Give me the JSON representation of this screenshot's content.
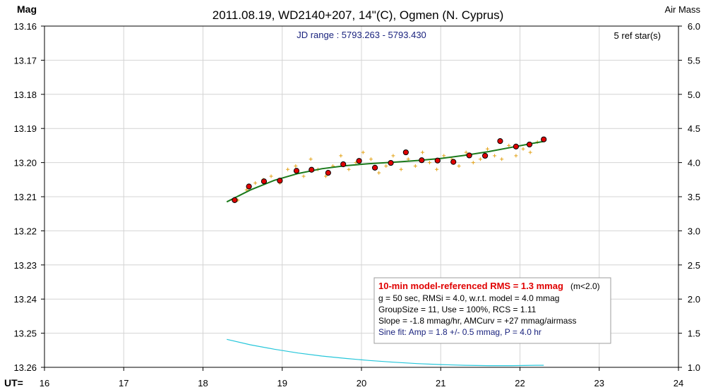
{
  "chart_data": {
    "type": "scatter",
    "title": "2011.08.19, WD2140+207, 14\"(C), Ogmen (N. Cyprus)",
    "ylabel_left": "Mag",
    "ylabel_right": "Air Mass",
    "xlabel": "UT=",
    "xlim": [
      16,
      24
    ],
    "ylim": [
      13.26,
      13.16
    ],
    "y2lim": [
      1.0,
      6.0
    ],
    "x_ticks": [
      "16",
      "17",
      "18",
      "19",
      "20",
      "21",
      "22",
      "23",
      "24"
    ],
    "y_ticks": [
      "13.16",
      "13.17",
      "13.18",
      "13.19",
      "13.20",
      "13.21",
      "13.22",
      "13.23",
      "13.24",
      "13.25",
      "13.26"
    ],
    "y2_ticks": [
      "6.0",
      "5.5",
      "5.0",
      "4.5",
      "4.0",
      "3.5",
      "3.0",
      "2.5",
      "2.0",
      "1.5",
      "1.0"
    ],
    "jd_range": "JD range : 5793.263 - 5793.430",
    "ref_stars": "5 ref star(s)",
    "series": [
      {
        "role": "individual",
        "color": "#e3a318",
        "marker": "plus",
        "x": [
          18.44,
          18.55,
          18.66,
          18.76,
          18.86,
          18.97,
          19.07,
          19.17,
          19.27,
          19.36,
          19.45,
          19.55,
          19.64,
          19.74,
          19.84,
          19.93,
          20.02,
          20.12,
          20.22,
          20.31,
          20.4,
          20.5,
          20.59,
          20.68,
          20.77,
          20.86,
          20.95,
          21.04,
          21.14,
          21.23,
          21.32,
          21.41,
          21.5,
          21.59,
          21.68,
          21.77,
          21.86,
          21.95,
          22.04,
          22.13,
          22.22
        ],
        "y": [
          13.211,
          13.208,
          13.206,
          13.205,
          13.204,
          13.206,
          13.202,
          13.201,
          13.204,
          13.199,
          13.202,
          13.204,
          13.201,
          13.198,
          13.202,
          13.2,
          13.197,
          13.199,
          13.203,
          13.201,
          13.198,
          13.202,
          13.199,
          13.201,
          13.197,
          13.2,
          13.202,
          13.198,
          13.199,
          13.201,
          13.197,
          13.2,
          13.199,
          13.196,
          13.198,
          13.199,
          13.195,
          13.198,
          13.196,
          13.197,
          13.194
        ]
      },
      {
        "role": "binned",
        "color": "#e00000",
        "marker": "circle",
        "x": [
          18.4,
          18.58,
          18.77,
          18.97,
          19.18,
          19.37,
          19.58,
          19.77,
          19.97,
          20.17,
          20.37,
          20.56,
          20.76,
          20.96,
          21.16,
          21.36,
          21.56,
          21.75,
          21.95,
          22.12,
          22.3
        ],
        "y": [
          13.211,
          13.207,
          13.2055,
          13.2053,
          13.2024,
          13.2021,
          13.203,
          13.2005,
          13.1995,
          13.2015,
          13.2001,
          13.197,
          13.1993,
          13.1994,
          13.1998,
          13.1979,
          13.198,
          13.1937,
          13.1953,
          13.1947,
          13.1932
        ]
      },
      {
        "role": "model-fit",
        "color": "#1b7a1b",
        "line": "solid",
        "x": [
          18.3,
          18.6,
          18.9,
          19.2,
          19.5,
          19.8,
          20.1,
          20.4,
          20.7,
          21.0,
          21.3,
          21.6,
          21.9,
          22.2,
          22.3
        ],
        "y": [
          13.2115,
          13.208,
          13.2052,
          13.2032,
          13.2018,
          13.2009,
          13.2003,
          13.1999,
          13.1994,
          13.1988,
          13.1979,
          13.1968,
          13.1955,
          13.1942,
          13.1938
        ]
      },
      {
        "role": "air-mass",
        "color": "#26c6da",
        "line": "solid",
        "axis": "right",
        "x": [
          18.3,
          18.6,
          18.9,
          19.2,
          19.5,
          19.8,
          20.1,
          20.4,
          20.7,
          21.0,
          21.3,
          21.6,
          21.9,
          22.2,
          22.3
        ],
        "y": [
          1.41,
          1.33,
          1.265,
          1.21,
          1.165,
          1.13,
          1.1,
          1.075,
          1.055,
          1.04,
          1.03,
          1.025,
          1.025,
          1.03,
          1.03
        ]
      }
    ],
    "info_box": {
      "line1_bold": "10-min model-referenced RMS = 1.3 mmag",
      "line1_tail": "(m<2.0)",
      "line2": "g = 50 sec, RMSi = 4.0, w.r.t. model = 4.0 mmag",
      "line3": "GroupSize = 11, Use = 100%, RCS = 1.11",
      "line4": "Slope = -1.8 mmag/hr, AMCurv = +27 mmag/airmass",
      "line5": "Sine fit: Amp = 1.8 +/- 0.5 mmag, P = 4.0 hr"
    }
  }
}
